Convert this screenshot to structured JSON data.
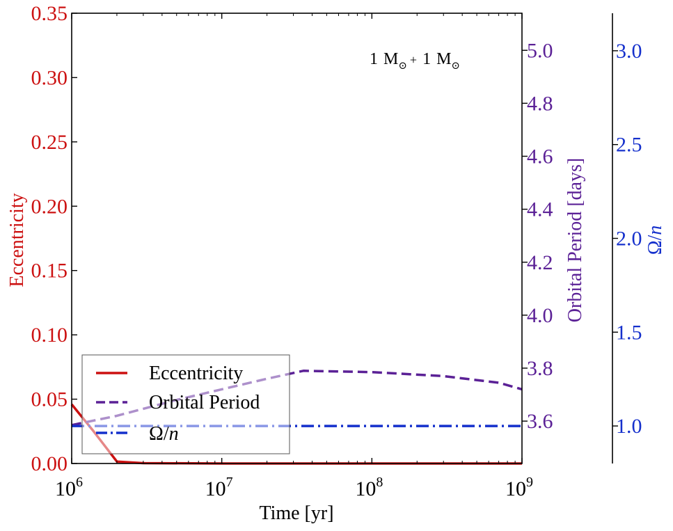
{
  "chart_data": {
    "type": "line",
    "annotation": {
      "parts": [
        "1",
        "M",
        "⊙",
        "+",
        "1",
        "M",
        "⊙"
      ]
    },
    "xlabel": "Time [yr]",
    "x_scale": "log",
    "xlim": [
      1000000,
      1000000000
    ],
    "x_ticks": [
      {
        "base": "10",
        "exp": "6",
        "value": 1000000
      },
      {
        "base": "10",
        "exp": "7",
        "value": 10000000
      },
      {
        "base": "10",
        "exp": "8",
        "value": 100000000
      },
      {
        "base": "10",
        "exp": "9",
        "value": 1000000000
      }
    ],
    "axes": {
      "left": {
        "label": "Eccentricity",
        "color": "#cc1111",
        "ylim": [
          0,
          0.35
        ],
        "ticks": [
          "0.00",
          "0.05",
          "0.10",
          "0.15",
          "0.20",
          "0.25",
          "0.30",
          "0.35"
        ]
      },
      "right1": {
        "label": "Orbital Period [days]",
        "color": "#5b2196",
        "ylim": [
          3.44,
          5.14
        ],
        "ticks": [
          "3.6",
          "3.8",
          "4.0",
          "4.2",
          "4.4",
          "4.6",
          "4.8",
          "5.0"
        ]
      },
      "right2": {
        "label_parts": [
          "Ω",
          "/",
          "n"
        ],
        "color": "#1530cc",
        "ylim": [
          0.8,
          3.2
        ],
        "ticks": [
          "1.0",
          "1.5",
          "2.0",
          "2.5",
          "3.0"
        ]
      }
    },
    "series": [
      {
        "name": "Eccentricity",
        "axis": "left",
        "color": "#cc1111",
        "style": "solid",
        "points": [
          [
            1000000,
            0.046
          ],
          [
            1400000,
            0.025
          ],
          [
            2000000,
            0.0015
          ],
          [
            3000000,
            0.0003
          ],
          [
            10000000,
            0.0
          ],
          [
            1000000000,
            0.0
          ]
        ]
      },
      {
        "name": "Orbital Period",
        "axis": "right1",
        "color": "#5b2196",
        "style": "dashed",
        "points": [
          [
            1000000,
            3.585
          ],
          [
            2000000,
            3.62
          ],
          [
            5000000,
            3.68
          ],
          [
            10000000,
            3.72
          ],
          [
            20000000,
            3.76
          ],
          [
            35000000,
            3.79
          ],
          [
            100000000,
            3.785
          ],
          [
            300000000,
            3.77
          ],
          [
            700000000,
            3.745
          ],
          [
            1000000000,
            3.72
          ]
        ]
      },
      {
        "name": "Ω/n",
        "axis": "right2",
        "color": "#1530cc",
        "style": "dashdot",
        "points": [
          [
            1000000,
            1.0
          ],
          [
            1000000000,
            1.0
          ]
        ]
      }
    ],
    "legend": {
      "placement": "lower-left",
      "entries": [
        {
          "text": "Eccentricity",
          "series": 0
        },
        {
          "text": "Orbital Period",
          "series": 1
        },
        {
          "text_parts": [
            "Ω",
            "/",
            "n"
          ],
          "series": 2
        }
      ]
    }
  }
}
